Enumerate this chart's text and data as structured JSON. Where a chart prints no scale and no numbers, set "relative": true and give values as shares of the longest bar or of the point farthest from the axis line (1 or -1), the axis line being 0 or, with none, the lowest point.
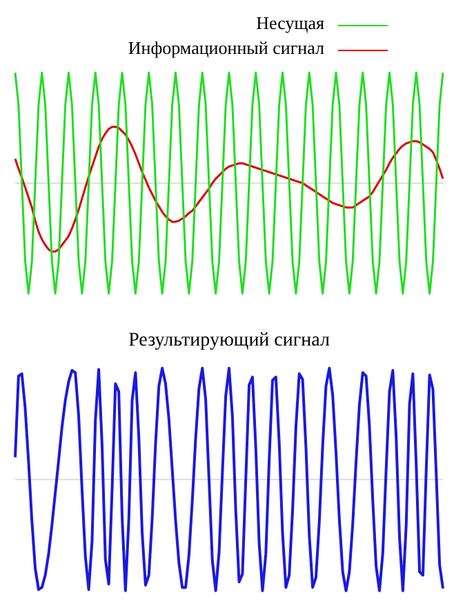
{
  "chart_data": [
    {
      "type": "line",
      "relative": true,
      "tick_labels": false,
      "legend": "top right",
      "marker": "none",
      "line_style": "solid",
      "categories": [
        null,
        null,
        null,
        null,
        null,
        null,
        null,
        null,
        null,
        null,
        null,
        null,
        null,
        null,
        null,
        null,
        null,
        null,
        null,
        null,
        null,
        null,
        null,
        null,
        null,
        null,
        null,
        null,
        null,
        null,
        null,
        null,
        null,
        null,
        null,
        null,
        null,
        null,
        null,
        null,
        null,
        null,
        null,
        null,
        null,
        null,
        null,
        null,
        null,
        null,
        null,
        null,
        null,
        null,
        null,
        null,
        null,
        null,
        null,
        null,
        null,
        null,
        null,
        null,
        null,
        null,
        null,
        null,
        null,
        null,
        null,
        null,
        null,
        null,
        null,
        null,
        null,
        null,
        null,
        null,
        null,
        null,
        null,
        null,
        null,
        null,
        null,
        null,
        null,
        null,
        null,
        null,
        null,
        null,
        null,
        null,
        null,
        null,
        null,
        null,
        null,
        null,
        null,
        null,
        null,
        null,
        null,
        null,
        null,
        null,
        null,
        null,
        null,
        null,
        null,
        null,
        null,
        null,
        null,
        null,
        null,
        null,
        null,
        null,
        null,
        null,
        null,
        null,
        null
      ],
      "series": [
        {
          "name": "Несущая",
          "color": "#22dd22",
          "values": [
            1,
            0.71,
            0,
            -0.71,
            -1,
            -0.71,
            0,
            0.71,
            1,
            0.71,
            0,
            -0.71,
            -1,
            -0.71,
            0,
            0.71,
            1,
            0.71,
            0,
            -0.71,
            -1,
            -0.71,
            0,
            0.71,
            1,
            0.71,
            0,
            -0.71,
            -1,
            -0.71,
            0,
            0.71,
            1,
            0.71,
            0,
            -0.71,
            -1,
            -0.71,
            0,
            0.71,
            1,
            0.71,
            0,
            -0.71,
            -1,
            -0.71,
            0,
            0.71,
            1,
            0.71,
            0,
            -0.71,
            -1,
            -0.71,
            0,
            0.71,
            1,
            0.71,
            0,
            -0.71,
            -1,
            -0.71,
            0,
            0.71,
            1,
            0.71,
            0,
            -0.71,
            -1,
            -0.71,
            0,
            0.71,
            1,
            0.71,
            0,
            -0.71,
            -1,
            -0.71,
            0,
            0.71,
            1,
            0.71,
            0,
            -0.71,
            -1,
            -0.71,
            0,
            0.71,
            1,
            0.71,
            0,
            -0.71,
            -1,
            -0.71,
            0,
            0.71,
            1,
            0.71,
            0,
            -0.71,
            -1,
            -0.71,
            0,
            0.71,
            1,
            0.71,
            0,
            -0.71,
            -1,
            -0.71,
            0,
            0.71,
            1,
            0.71,
            0,
            -0.71,
            -1,
            -0.71,
            0,
            0.71,
            1,
            0.71,
            0,
            -0.71,
            -1,
            -0.71,
            0,
            0.71,
            1
          ]
        },
        {
          "name": "Информационный сигнал",
          "color": "#dd0000",
          "values": [
            0.22,
            0.13,
            0.05,
            -0.04,
            -0.13,
            -0.22,
            -0.34,
            -0.44,
            -0.51,
            -0.56,
            -0.6,
            -0.62,
            -0.62,
            -0.6,
            -0.56,
            -0.52,
            -0.48,
            -0.41,
            -0.33,
            -0.24,
            -0.14,
            -0.04,
            0.06,
            0.15,
            0.24,
            0.33,
            0.4,
            0.45,
            0.49,
            0.51,
            0.51,
            0.5,
            0.47,
            0.44,
            0.39,
            0.33,
            0.26,
            0.18,
            0.1,
            0.03,
            -0.04,
            -0.1,
            -0.16,
            -0.21,
            -0.26,
            -0.3,
            -0.33,
            -0.35,
            -0.35,
            -0.34,
            -0.32,
            -0.3,
            -0.27,
            -0.25,
            -0.21,
            -0.17,
            -0.13,
            -0.09,
            -0.05,
            0,
            0.04,
            0.07,
            0.1,
            0.13,
            0.15,
            0.16,
            0.17,
            0.18,
            0.18,
            0.17,
            0.16,
            0.15,
            0.14,
            0.13,
            0.12,
            0.11,
            0.1,
            0.09,
            0.08,
            0.07,
            0.06,
            0.05,
            0.04,
            0.03,
            0.02,
            0.01,
            0,
            -0.02,
            -0.04,
            -0.06,
            -0.08,
            -0.1,
            -0.12,
            -0.14,
            -0.16,
            -0.18,
            -0.19,
            -0.2,
            -0.21,
            -0.22,
            -0.22,
            -0.22,
            -0.2,
            -0.18,
            -0.16,
            -0.14,
            -0.12,
            -0.08,
            -0.03,
            0.02,
            0.07,
            0.12,
            0.18,
            0.23,
            0.27,
            0.31,
            0.34,
            0.36,
            0.37,
            0.38,
            0.38,
            0.37,
            0.35,
            0.33,
            0.31,
            0.28,
            0.21,
            0.13,
            0.04
          ]
        }
      ]
    },
    {
      "type": "line",
      "title": "Результирующий сигнал",
      "relative": true,
      "tick_labels": false,
      "legend": false,
      "marker": "none",
      "line_style": "solid",
      "categories": [
        null,
        null,
        null,
        null,
        null,
        null,
        null,
        null,
        null,
        null,
        null,
        null,
        null,
        null,
        null,
        null,
        null,
        null,
        null,
        null,
        null,
        null,
        null,
        null,
        null,
        null,
        null,
        null,
        null,
        null,
        null,
        null,
        null,
        null,
        null,
        null,
        null,
        null,
        null,
        null,
        null,
        null,
        null,
        null,
        null,
        null,
        null,
        null,
        null,
        null,
        null,
        null,
        null,
        null,
        null,
        null,
        null,
        null,
        null,
        null,
        null,
        null,
        null,
        null,
        null,
        null,
        null,
        null,
        null,
        null,
        null,
        null,
        null,
        null,
        null,
        null,
        null,
        null,
        null,
        null,
        null,
        null,
        null,
        null,
        null,
        null,
        null,
        null,
        null,
        null,
        null,
        null,
        null,
        null,
        null,
        null,
        null,
        null,
        null,
        null,
        null,
        null,
        null,
        null,
        null,
        null,
        null,
        null,
        null,
        null,
        null,
        null,
        null,
        null,
        null,
        null,
        null,
        null,
        null,
        null,
        null,
        null,
        null,
        null,
        null,
        null,
        null,
        null,
        null
      ],
      "series": [
        {
          "color": "#1a1add",
          "values": [
            0.2,
            0.93,
            0.95,
            0.64,
            0.16,
            -0.37,
            -0.8,
            -0.99,
            -0.97,
            -0.86,
            -0.67,
            -0.41,
            -0.12,
            0.17,
            0.47,
            0.71,
            0.88,
            0.98,
            0.96,
            0.57,
            -0.09,
            -0.69,
            -0.99,
            -0.56,
            0.53,
            0.99,
            0.31,
            -0.72,
            -0.94,
            -0.09,
            0.86,
            0.79,
            -0.34,
            -1,
            -0.36,
            0.71,
            0.96,
            0.38,
            -0.48,
            -0.95,
            -0.86,
            -0.35,
            0.32,
            0.84,
            1,
            0.86,
            0.54,
            0.09,
            -0.37,
            -0.75,
            -0.97,
            -0.97,
            -0.68,
            -0.19,
            0.37,
            0.82,
            1,
            0.72,
            0,
            -0.73,
            -1,
            -0.66,
            0.06,
            0.75,
            1,
            0.57,
            -0.28,
            -0.92,
            -0.85,
            0,
            0.85,
            0.92,
            0.28,
            -0.57,
            -1,
            -0.67,
            0.17,
            0.89,
            0.92,
            0.33,
            -0.48,
            -0.97,
            -0.86,
            -0.28,
            0.47,
            0.95,
            0.9,
            0.29,
            -0.5,
            -0.97,
            -0.88,
            -0.38,
            0.3,
            0.84,
            1,
            0.76,
            0.24,
            -0.36,
            -0.83,
            -1,
            -0.83,
            -0.4,
            0.16,
            0.67,
            0.96,
            0.93,
            0.48,
            -0.19,
            -0.78,
            -1,
            -0.66,
            0.09,
            0.79,
            0.98,
            0.38,
            -0.52,
            -1,
            -0.41,
            0.68,
            0.95,
            0.13,
            -0.83,
            -0.86,
            0.09,
            0.94,
            0.81,
            0.04,
            -0.77,
            -0.98
          ]
        }
      ]
    }
  ]
}
